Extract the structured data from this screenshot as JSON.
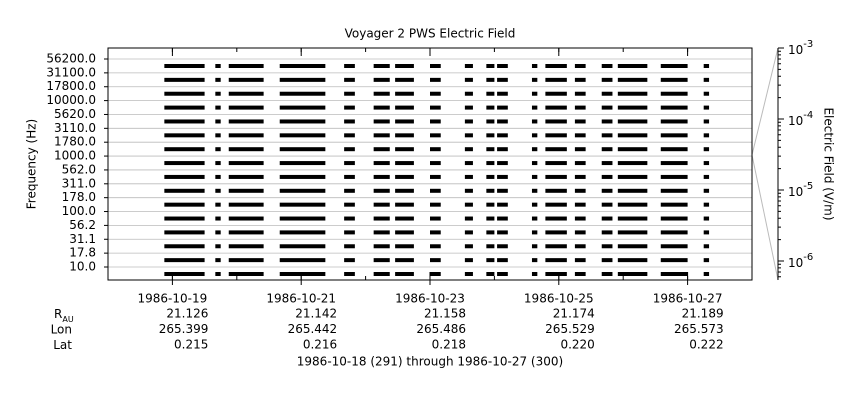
{
  "chart_data": {
    "type": "spectrogram-lines",
    "title": "Voyager 2 PWS Electric Field",
    "ylabel": "Frequency (Hz)",
    "y2label": "Electric Field (V/m)",
    "categories": [
      "10.0",
      "17.8",
      "31.1",
      "56.2",
      "100.0",
      "178.0",
      "311.0",
      "562.0",
      "1000.0",
      "1780.0",
      "3110.0",
      "5620.0",
      "10000.0",
      "17800.0",
      "31100.0",
      "56200.0"
    ],
    "xlim": [
      "1986-10-18",
      "1986-10-28"
    ],
    "xticks": [
      "1986-10-19",
      "1986-10-21",
      "1986-10-23",
      "1986-10-25",
      "1986-10-27"
    ],
    "intervals": [
      [
        "1986-10-18T21",
        "1986-10-19T12"
      ],
      [
        "1986-10-19T16",
        "1986-10-19T18"
      ],
      [
        "1986-10-19T21",
        "1986-10-20T10"
      ],
      [
        "1986-10-20T16",
        "1986-10-21T09"
      ],
      [
        "1986-10-21T16",
        "1986-10-21T20"
      ],
      [
        "1986-10-22T03",
        "1986-10-22T09"
      ],
      [
        "1986-10-22T11",
        "1986-10-22T18"
      ],
      [
        "1986-10-23T00",
        "1986-10-23T04"
      ],
      [
        "1986-10-23T13",
        "1986-10-23T16"
      ],
      [
        "1986-10-23T21",
        "1986-10-24T00"
      ],
      [
        "1986-10-24T01",
        "1986-10-24T05"
      ],
      [
        "1986-10-24T14",
        "1986-10-24T16"
      ],
      [
        "1986-10-24T19",
        "1986-10-25T03"
      ],
      [
        "1986-10-25T06",
        "1986-10-25T10"
      ],
      [
        "1986-10-25T16",
        "1986-10-25T20"
      ],
      [
        "1986-10-25T22",
        "1986-10-26T09"
      ],
      [
        "1986-10-26T14",
        "1986-10-27T00"
      ],
      [
        "1986-10-27T06",
        "1986-10-27T08"
      ]
    ],
    "color": "#000000",
    "y2log": true,
    "y2lim": [
      5.4e-07,
      0.001
    ],
    "y2ticks": [
      {
        "value": 0.001,
        "label": "10",
        "exponent": "-3"
      },
      {
        "value": 0.0001,
        "label": "10",
        "exponent": "-4"
      },
      {
        "value": 1e-05,
        "label": "10",
        "exponent": "-5"
      },
      {
        "value": 1e-06,
        "label": "10",
        "exponent": "-6"
      }
    ],
    "ephemeris": [
      {
        "name": "R",
        "subscript": "AU",
        "values": [
          21.126,
          21.142,
          21.158,
          21.174,
          21.189
        ],
        "value_labels": [
          "21.126",
          "21.142",
          "21.158",
          "21.174",
          "21.189"
        ]
      },
      {
        "name": "Lon",
        "values": [
          265.399,
          265.442,
          265.486,
          265.529,
          265.573
        ],
        "value_labels": [
          "265.399",
          "265.442",
          "265.486",
          "265.529",
          "265.573"
        ]
      },
      {
        "name": "Lat",
        "values": [
          0.215,
          0.216,
          0.218,
          0.22,
          0.222
        ],
        "value_labels": [
          "0.215",
          "0.216",
          "0.218",
          "0.220",
          "0.222"
        ]
      }
    ],
    "footer": "1986-10-18 (291) through 1986-10-27 (300)",
    "grid": true
  }
}
